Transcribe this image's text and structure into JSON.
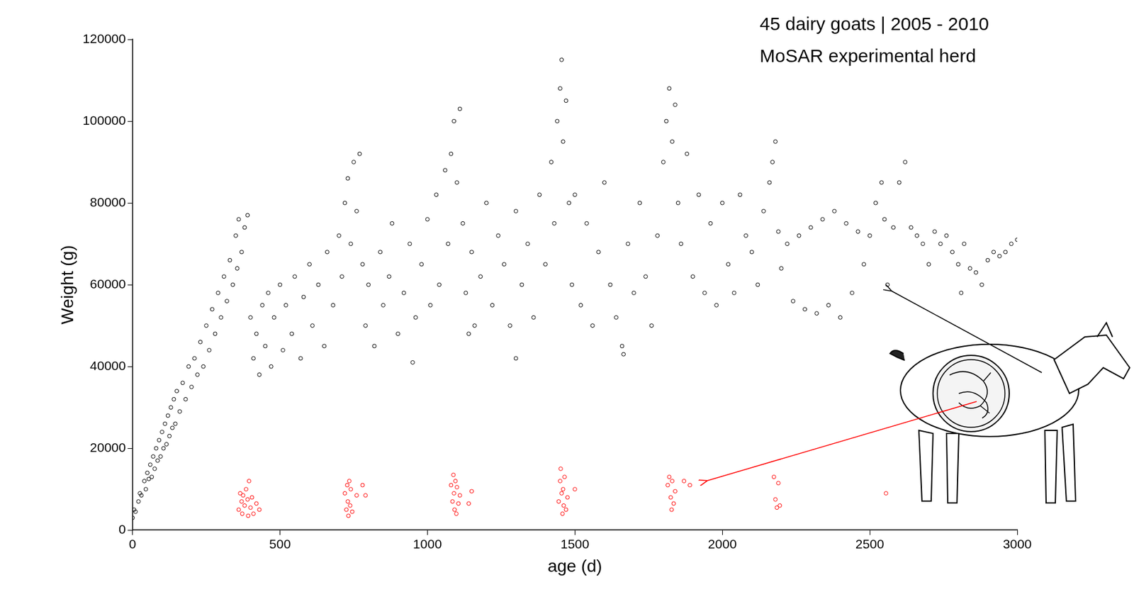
{
  "chart_data": {
    "type": "scatter",
    "title": "45 dairy goats | 2005 - 2010",
    "subtitle": "MoSAR experimental herd",
    "x_label": "age (d)",
    "y_label": "Weight (g)",
    "xlim": [
      0,
      3000
    ],
    "xticks": [
      0,
      500,
      1000,
      1500,
      2000,
      2500,
      3000
    ],
    "ylim": [
      0,
      120000
    ],
    "yticks": [
      0,
      20000,
      40000,
      60000,
      80000,
      100000,
      120000
    ],
    "grid": false,
    "series": [
      {
        "color": "#000000",
        "marker": "circle_open",
        "x": [
          0,
          5,
          10,
          20,
          25,
          30,
          40,
          45,
          50,
          55,
          60,
          65,
          70,
          75,
          80,
          85,
          90,
          95,
          100,
          105,
          110,
          115,
          120,
          125,
          130,
          135,
          140,
          145,
          150,
          160,
          170,
          180,
          190,
          200,
          210,
          220,
          230,
          240,
          250,
          260,
          270,
          280,
          290,
          300,
          310,
          320,
          330,
          340,
          350,
          355,
          360,
          370,
          380,
          390,
          400,
          410,
          420,
          430,
          440,
          450,
          460,
          470,
          480,
          500,
          510,
          520,
          540,
          550,
          570,
          580,
          600,
          610,
          630,
          650,
          660,
          680,
          700,
          710,
          720,
          730,
          740,
          750,
          760,
          770,
          780,
          790,
          800,
          820,
          840,
          850,
          870,
          880,
          900,
          920,
          940,
          950,
          960,
          980,
          1000,
          1010,
          1030,
          1040,
          1060,
          1070,
          1080,
          1090,
          1100,
          1110,
          1120,
          1130,
          1140,
          1150,
          1160,
          1180,
          1200,
          1220,
          1240,
          1260,
          1280,
          1300,
          1300,
          1320,
          1340,
          1360,
          1380,
          1400,
          1420,
          1430,
          1440,
          1450,
          1455,
          1460,
          1470,
          1480,
          1490,
          1500,
          1520,
          1540,
          1560,
          1580,
          1600,
          1620,
          1640,
          1660,
          1665,
          1680,
          1700,
          1720,
          1740,
          1760,
          1780,
          1800,
          1810,
          1820,
          1830,
          1840,
          1850,
          1860,
          1880,
          1900,
          1920,
          1940,
          1960,
          1980,
          2000,
          2020,
          2040,
          2060,
          2080,
          2100,
          2120,
          2140,
          2160,
          2170,
          2180,
          2190,
          2200,
          2220,
          2240,
          2260,
          2280,
          2300,
          2320,
          2340,
          2360,
          2380,
          2400,
          2420,
          2440,
          2460,
          2480,
          2500,
          2520,
          2540,
          2550,
          2560,
          2580,
          2600,
          2620,
          2640,
          2660,
          2680,
          2700,
          2720,
          2740,
          2760,
          2780,
          2800,
          2810,
          2820,
          2840,
          2860,
          2880,
          2900,
          2920,
          2940,
          2960,
          2980,
          3000
        ],
        "values": [
          3000,
          5000,
          4500,
          7000,
          9000,
          8500,
          12000,
          10000,
          14000,
          12500,
          16000,
          13000,
          18000,
          15000,
          20000,
          17000,
          22000,
          18000,
          24000,
          20000,
          26000,
          21000,
          28000,
          23000,
          30000,
          25000,
          32000,
          26000,
          34000,
          29000,
          36000,
          32000,
          40000,
          35000,
          42000,
          38000,
          46000,
          40000,
          50000,
          44000,
          54000,
          48000,
          58000,
          52000,
          62000,
          56000,
          66000,
          60000,
          72000,
          64000,
          76000,
          68000,
          74000,
          77000,
          52000,
          42000,
          48000,
          38000,
          55000,
          45000,
          58000,
          40000,
          52000,
          60000,
          44000,
          55000,
          48000,
          62000,
          42000,
          57000,
          65000,
          50000,
          60000,
          45000,
          68000,
          55000,
          72000,
          62000,
          80000,
          86000,
          70000,
          90000,
          78000,
          92000,
          65000,
          50000,
          60000,
          45000,
          68000,
          55000,
          62000,
          75000,
          48000,
          58000,
          70000,
          41000,
          52000,
          65000,
          76000,
          55000,
          82000,
          60000,
          88000,
          70000,
          92000,
          100000,
          85000,
          103000,
          75000,
          58000,
          48000,
          68000,
          50000,
          62000,
          80000,
          55000,
          72000,
          65000,
          50000,
          42000,
          78000,
          60000,
          70000,
          52000,
          82000,
          65000,
          90000,
          75000,
          100000,
          108000,
          115000,
          95000,
          105000,
          80000,
          60000,
          82000,
          55000,
          75000,
          50000,
          68000,
          85000,
          60000,
          52000,
          45000,
          43000,
          70000,
          58000,
          80000,
          62000,
          50000,
          72000,
          90000,
          100000,
          108000,
          95000,
          104000,
          80000,
          70000,
          92000,
          62000,
          82000,
          58000,
          75000,
          55000,
          80000,
          65000,
          58000,
          82000,
          72000,
          68000,
          60000,
          78000,
          85000,
          90000,
          95000,
          73000,
          64000,
          70000,
          56000,
          72000,
          54000,
          74000,
          53000,
          76000,
          55000,
          78000,
          52000,
          75000,
          58000,
          73000,
          65000,
          72000,
          80000,
          85000,
          76000,
          60000,
          74000,
          85000,
          90000,
          74000,
          72000,
          70000,
          65000,
          73000,
          70000,
          72000,
          68000,
          65000,
          58000,
          70000,
          64000,
          63000,
          60000,
          66000,
          68000,
          67000,
          68000,
          70000,
          71000
        ]
      },
      {
        "color": "#ff0000",
        "marker": "circle_open",
        "x": [
          360,
          365,
          370,
          372,
          375,
          380,
          385,
          390,
          392,
          395,
          400,
          405,
          410,
          420,
          430,
          720,
          725,
          728,
          730,
          732,
          735,
          738,
          740,
          745,
          760,
          780,
          790,
          1080,
          1085,
          1088,
          1090,
          1092,
          1095,
          1098,
          1100,
          1105,
          1110,
          1140,
          1150,
          1445,
          1450,
          1452,
          1455,
          1458,
          1460,
          1462,
          1465,
          1470,
          1475,
          1500,
          1815,
          1820,
          1825,
          1828,
          1830,
          1835,
          1840,
          1870,
          1890,
          2175,
          2180,
          2185,
          2190,
          2195,
          2555
        ],
        "values": [
          5000,
          9000,
          7000,
          4000,
          8500,
          6000,
          10000,
          7500,
          3500,
          12000,
          5500,
          8000,
          4000,
          6500,
          5000,
          9000,
          5000,
          11000,
          7000,
          3500,
          12000,
          6000,
          10000,
          4500,
          8500,
          11000,
          8500,
          11000,
          7000,
          13500,
          9000,
          5000,
          12000,
          4000,
          10500,
          6500,
          8500,
          6500,
          9500,
          7000,
          12000,
          15000,
          9000,
          4000,
          10000,
          6000,
          13000,
          5000,
          8000,
          10000,
          11000,
          13000,
          8000,
          5000,
          12000,
          6500,
          9500,
          12000,
          11000,
          13000,
          7500,
          5500,
          11500,
          6000,
          9000
        ]
      }
    ]
  }
}
